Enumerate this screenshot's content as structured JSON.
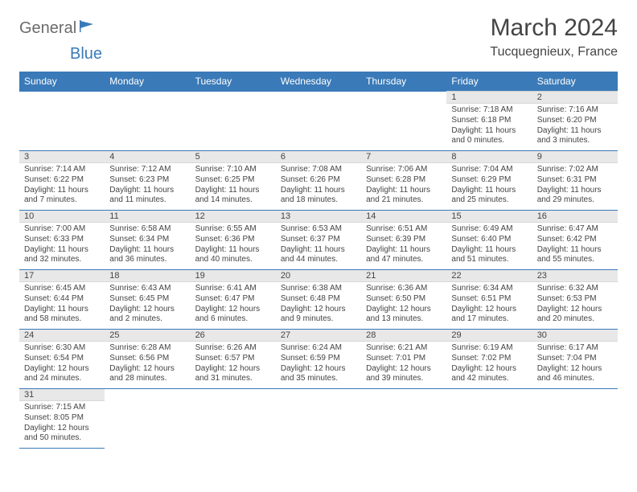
{
  "logo": {
    "part1": "General",
    "part2": "Blue"
  },
  "title": "March 2024",
  "subtitle": "Tucquegnieux, France",
  "colors": {
    "header_bg": "#3a7ab8",
    "header_text": "#ffffff",
    "daynum_bg": "#e8e8e8",
    "row_border": "#3a7ab8",
    "text": "#444444",
    "logo_gray": "#6b6b6b",
    "logo_blue": "#3a7ab8"
  },
  "weekdays": [
    "Sunday",
    "Monday",
    "Tuesday",
    "Wednesday",
    "Thursday",
    "Friday",
    "Saturday"
  ],
  "weeks": [
    [
      null,
      null,
      null,
      null,
      null,
      {
        "n": "1",
        "sr": "7:18 AM",
        "ss": "6:18 PM",
        "dh": "11",
        "dm": "0"
      },
      {
        "n": "2",
        "sr": "7:16 AM",
        "ss": "6:20 PM",
        "dh": "11",
        "dm": "3"
      }
    ],
    [
      {
        "n": "3",
        "sr": "7:14 AM",
        "ss": "6:22 PM",
        "dh": "11",
        "dm": "7"
      },
      {
        "n": "4",
        "sr": "7:12 AM",
        "ss": "6:23 PM",
        "dh": "11",
        "dm": "11"
      },
      {
        "n": "5",
        "sr": "7:10 AM",
        "ss": "6:25 PM",
        "dh": "11",
        "dm": "14"
      },
      {
        "n": "6",
        "sr": "7:08 AM",
        "ss": "6:26 PM",
        "dh": "11",
        "dm": "18"
      },
      {
        "n": "7",
        "sr": "7:06 AM",
        "ss": "6:28 PM",
        "dh": "11",
        "dm": "21"
      },
      {
        "n": "8",
        "sr": "7:04 AM",
        "ss": "6:29 PM",
        "dh": "11",
        "dm": "25"
      },
      {
        "n": "9",
        "sr": "7:02 AM",
        "ss": "6:31 PM",
        "dh": "11",
        "dm": "29"
      }
    ],
    [
      {
        "n": "10",
        "sr": "7:00 AM",
        "ss": "6:33 PM",
        "dh": "11",
        "dm": "32"
      },
      {
        "n": "11",
        "sr": "6:58 AM",
        "ss": "6:34 PM",
        "dh": "11",
        "dm": "36"
      },
      {
        "n": "12",
        "sr": "6:55 AM",
        "ss": "6:36 PM",
        "dh": "11",
        "dm": "40"
      },
      {
        "n": "13",
        "sr": "6:53 AM",
        "ss": "6:37 PM",
        "dh": "11",
        "dm": "44"
      },
      {
        "n": "14",
        "sr": "6:51 AM",
        "ss": "6:39 PM",
        "dh": "11",
        "dm": "47"
      },
      {
        "n": "15",
        "sr": "6:49 AM",
        "ss": "6:40 PM",
        "dh": "11",
        "dm": "51"
      },
      {
        "n": "16",
        "sr": "6:47 AM",
        "ss": "6:42 PM",
        "dh": "11",
        "dm": "55"
      }
    ],
    [
      {
        "n": "17",
        "sr": "6:45 AM",
        "ss": "6:44 PM",
        "dh": "11",
        "dm": "58"
      },
      {
        "n": "18",
        "sr": "6:43 AM",
        "ss": "6:45 PM",
        "dh": "12",
        "dm": "2"
      },
      {
        "n": "19",
        "sr": "6:41 AM",
        "ss": "6:47 PM",
        "dh": "12",
        "dm": "6"
      },
      {
        "n": "20",
        "sr": "6:38 AM",
        "ss": "6:48 PM",
        "dh": "12",
        "dm": "9"
      },
      {
        "n": "21",
        "sr": "6:36 AM",
        "ss": "6:50 PM",
        "dh": "12",
        "dm": "13"
      },
      {
        "n": "22",
        "sr": "6:34 AM",
        "ss": "6:51 PM",
        "dh": "12",
        "dm": "17"
      },
      {
        "n": "23",
        "sr": "6:32 AM",
        "ss": "6:53 PM",
        "dh": "12",
        "dm": "20"
      }
    ],
    [
      {
        "n": "24",
        "sr": "6:30 AM",
        "ss": "6:54 PM",
        "dh": "12",
        "dm": "24"
      },
      {
        "n": "25",
        "sr": "6:28 AM",
        "ss": "6:56 PM",
        "dh": "12",
        "dm": "28"
      },
      {
        "n": "26",
        "sr": "6:26 AM",
        "ss": "6:57 PM",
        "dh": "12",
        "dm": "31"
      },
      {
        "n": "27",
        "sr": "6:24 AM",
        "ss": "6:59 PM",
        "dh": "12",
        "dm": "35"
      },
      {
        "n": "28",
        "sr": "6:21 AM",
        "ss": "7:01 PM",
        "dh": "12",
        "dm": "39"
      },
      {
        "n": "29",
        "sr": "6:19 AM",
        "ss": "7:02 PM",
        "dh": "12",
        "dm": "42"
      },
      {
        "n": "30",
        "sr": "6:17 AM",
        "ss": "7:04 PM",
        "dh": "12",
        "dm": "46"
      }
    ],
    [
      {
        "n": "31",
        "sr": "7:15 AM",
        "ss": "8:05 PM",
        "dh": "12",
        "dm": "50"
      },
      null,
      null,
      null,
      null,
      null,
      null
    ]
  ],
  "labels": {
    "sunrise": "Sunrise:",
    "sunset": "Sunset:",
    "daylight": "Daylight:",
    "hours": "hours",
    "and": "and",
    "minutes": "minutes."
  }
}
